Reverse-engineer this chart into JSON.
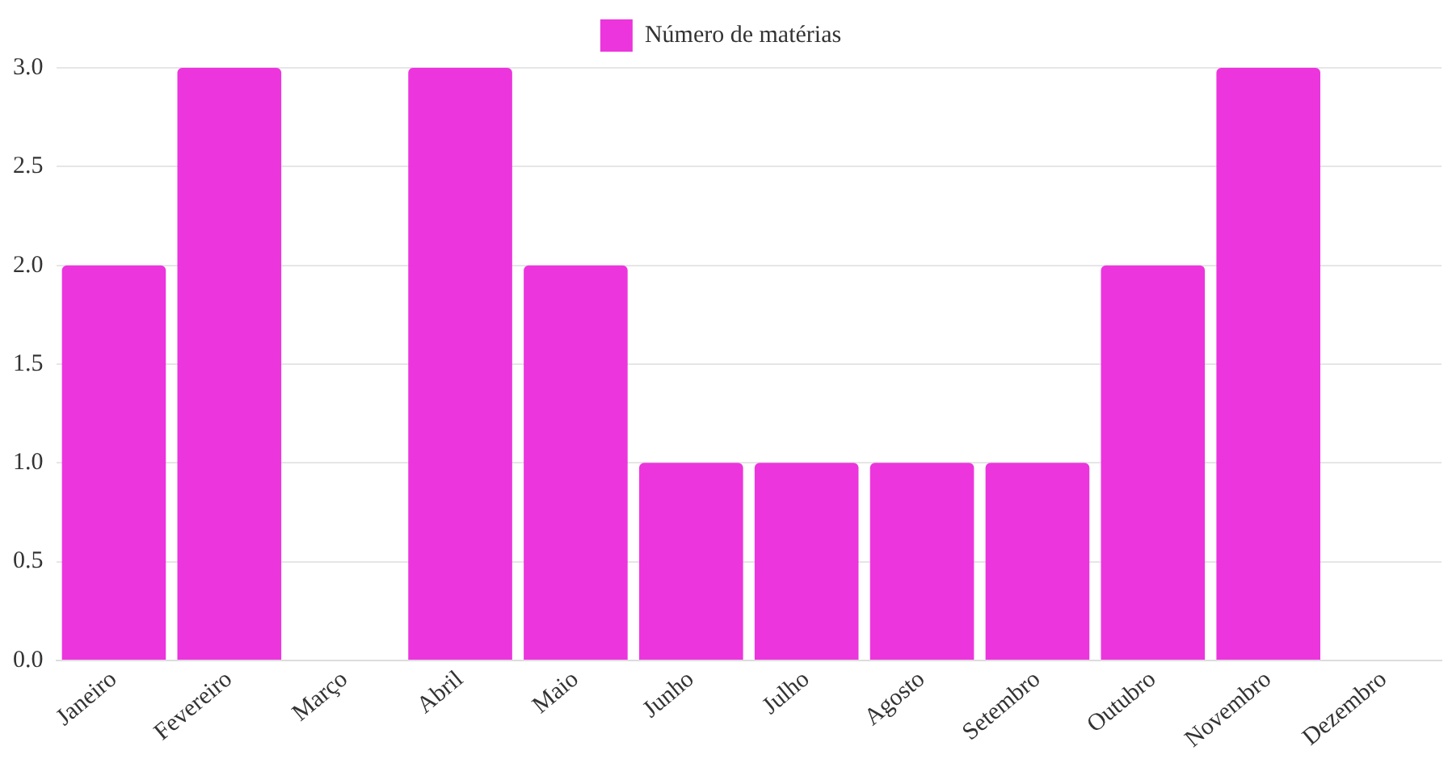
{
  "chart_data": {
    "type": "bar",
    "categories": [
      "Janeiro",
      "Fevereiro",
      "Março",
      "Abril",
      "Maio",
      "Junho",
      "Julho",
      "Agosto",
      "Setembro",
      "Outubro",
      "Novembro",
      "Dezembro"
    ],
    "series": [
      {
        "name": "Número de matérias",
        "color": "#ec35dd",
        "values": [
          2,
          3,
          0,
          3,
          2,
          1,
          1,
          1,
          1,
          2,
          3,
          0
        ]
      }
    ],
    "ylim": [
      0,
      3
    ],
    "yticks": [
      {
        "value": 0,
        "label": "0.0"
      },
      {
        "value": 0.5,
        "label": "0.5"
      },
      {
        "value": 1,
        "label": "1.0"
      },
      {
        "value": 1.5,
        "label": "1.5"
      },
      {
        "value": 2,
        "label": "2.0"
      },
      {
        "value": 2.5,
        "label": "2.5"
      },
      {
        "value": 3,
        "label": "3.0"
      }
    ],
    "grid": "y",
    "legend": "top"
  }
}
